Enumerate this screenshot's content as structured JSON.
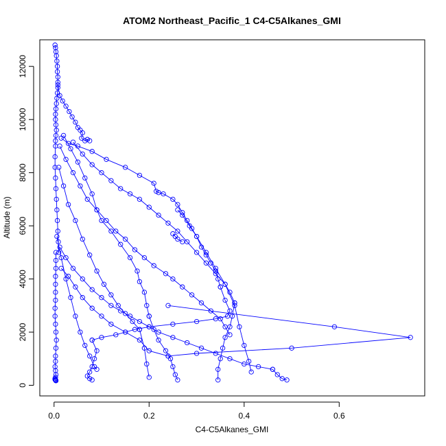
{
  "chart_data": {
    "type": "scatter",
    "title": "ATOM2 Northeast_Pacific_1 C4-C5Alkanes_GMI",
    "xlabel": "C4-C5Alkanes_GMI",
    "ylabel": "Altitude (m)",
    "xlim": [
      -0.03,
      0.78
    ],
    "ylim": [
      -400,
      13000
    ],
    "xticks": [
      0,
      0.2,
      0.4,
      0.6
    ],
    "xtick_labels": [
      "0.0",
      "0.2",
      "0.4",
      "0.6"
    ],
    "yticks": [
      0,
      2000,
      4000,
      6000,
      8000,
      10000,
      12000
    ],
    "ytick_labels": [
      "0",
      "2000",
      "4000",
      "6000",
      "8000",
      "10000",
      "12000"
    ],
    "grid": false,
    "legend": "none",
    "color": "#0000ff",
    "marker": "open-circle",
    "series": [
      {
        "x": [
          0.002,
          0.003,
          0.004,
          0.005,
          0.006,
          0.007,
          0.007,
          0.008,
          0.008,
          0.008,
          0.007,
          0.006,
          0.005,
          0.004,
          0.003,
          0.003,
          0.004,
          0.005,
          0.004,
          0.003,
          0.003,
          0.002,
          0.002,
          0.003,
          0.004,
          0.005,
          0.006,
          0.007,
          0.008,
          0.009,
          0.01
        ],
        "y": [
          12800,
          12700,
          12550,
          12400,
          12200,
          12000,
          11800,
          11600,
          11400,
          11200,
          11000,
          10800,
          10600,
          10400,
          10200,
          10000,
          9800,
          9600,
          9400,
          9200,
          9000,
          8600,
          8200,
          7800,
          7400,
          7000,
          6600,
          6200,
          5800,
          5400,
          5000
        ]
      },
      {
        "x": [
          0.004,
          0.004,
          0.004,
          0.003,
          0.003,
          0.003,
          0.003,
          0.002,
          0.002,
          0.003,
          0.004,
          0.005,
          0.004,
          0.003,
          0.003,
          0.002,
          0.003,
          0.004,
          0.003,
          0.002,
          0.002,
          0.003,
          0.003,
          0.004,
          0.004
        ],
        "y": [
          5000,
          4700,
          4400,
          4100,
          3800,
          3500,
          3200,
          2900,
          2600,
          2300,
          2000,
          1700,
          1400,
          1100,
          900,
          700,
          550,
          400,
          300,
          250,
          220,
          200,
          190,
          180,
          170
        ]
      },
      {
        "x": [
          0.008,
          0.012,
          0.018,
          0.025,
          0.032,
          0.038,
          0.045,
          0.05,
          0.055,
          0.06,
          0.058,
          0.065,
          0.07,
          0.075
        ],
        "y": [
          11300,
          10900,
          10700,
          10500,
          10300,
          10100,
          9900,
          9700,
          9600,
          9500,
          9300,
          9200,
          9250,
          9200
        ]
      },
      {
        "x": [
          0.015,
          0.03,
          0.05,
          0.08,
          0.11,
          0.15,
          0.18,
          0.21,
          0.215,
          0.22,
          0.23,
          0.25,
          0.26,
          0.27,
          0.28,
          0.29,
          0.3,
          0.31,
          0.32,
          0.33,
          0.34,
          0.345,
          0.35
        ],
        "y": [
          9300,
          9100,
          9000,
          8800,
          8500,
          8200,
          7900,
          7600,
          7300,
          7250,
          7200,
          7000,
          6800,
          6500,
          6200,
          5900,
          5600,
          5200,
          4900,
          4600,
          4300,
          4000,
          3700
        ]
      },
      {
        "x": [
          0.35,
          0.36,
          0.37,
          0.365,
          0.34,
          0.3,
          0.25,
          0.2,
          0.17,
          0.15,
          0.13,
          0.1,
          0.08
        ],
        "y": [
          3700,
          3200,
          2800,
          2600,
          2500,
          2400,
          2300,
          2200,
          2100,
          2000,
          1900,
          1800,
          1700
        ]
      },
      {
        "x": [
          0.08,
          0.09,
          0.085,
          0.08,
          0.075,
          0.07,
          0.075,
          0.08
        ],
        "y": [
          1700,
          1300,
          1000,
          700,
          500,
          350,
          250,
          200
        ]
      },
      {
        "x": [
          0.02,
          0.035,
          0.05,
          0.065,
          0.08,
          0.09,
          0.1,
          0.12,
          0.14,
          0.16,
          0.175,
          0.18,
          0.19,
          0.195,
          0.2
        ],
        "y": [
          9400,
          8900,
          8400,
          7800,
          7200,
          6600,
          6200,
          5800,
          5300,
          4800,
          4300,
          3900,
          3500,
          3000,
          2600
        ]
      },
      {
        "x": [
          0.2,
          0.21,
          0.22,
          0.235,
          0.245,
          0.25,
          0.255,
          0.26
        ],
        "y": [
          2600,
          2100,
          1700,
          1300,
          1000,
          700,
          400,
          200
        ]
      },
      {
        "x": [
          0.04,
          0.06,
          0.08,
          0.1,
          0.12,
          0.14,
          0.16,
          0.18,
          0.2,
          0.22,
          0.24,
          0.26,
          0.28,
          0.3,
          0.32,
          0.34,
          0.36,
          0.37,
          0.38
        ],
        "y": [
          9150,
          8700,
          8300,
          8000,
          7700,
          7400,
          7200,
          7000,
          6700,
          6400,
          6100,
          5800,
          5400,
          5000,
          4600,
          4200,
          3800,
          3500,
          3100
        ]
      },
      {
        "x": [
          0.38,
          0.375,
          0.37,
          0.36,
          0.355,
          0.35,
          0.345,
          0.345
        ],
        "y": [
          3100,
          2600,
          2200,
          1800,
          1400,
          1000,
          600,
          200
        ]
      },
      {
        "x": [
          0.012,
          0.025,
          0.04,
          0.055,
          0.07,
          0.09,
          0.11,
          0.13,
          0.15,
          0.17,
          0.19,
          0.21,
          0.235,
          0.25,
          0.27,
          0.29,
          0.31,
          0.33,
          0.35,
          0.36,
          0.37
        ],
        "y": [
          9000,
          8500,
          8000,
          7500,
          7000,
          6600,
          6200,
          5800,
          5500,
          5100,
          4800,
          4500,
          4200,
          4000,
          3700,
          3400,
          3100,
          2800,
          2500,
          2200,
          1900
        ]
      },
      {
        "x": [
          0.24,
          0.59,
          0.75,
          0.5,
          0.3,
          0.24
        ],
        "y": [
          3000,
          2200,
          1800,
          1400,
          1200,
          1100
        ]
      },
      {
        "x": [
          0.24,
          0.2,
          0.18,
          0.15,
          0.12,
          0.1,
          0.08,
          0.06,
          0.045,
          0.03,
          0.015
        ],
        "y": [
          1100,
          1300,
          1700,
          2000,
          2300,
          2600,
          2900,
          3300,
          3700,
          4100,
          4400
        ]
      },
      {
        "x": [
          0.01,
          0.02,
          0.03,
          0.045,
          0.06,
          0.075,
          0.09,
          0.105,
          0.12,
          0.135,
          0.15,
          0.165,
          0.18
        ],
        "y": [
          8200,
          7500,
          6800,
          6200,
          5500,
          4900,
          4300,
          3800,
          3400,
          3000,
          2700,
          2400,
          2100
        ]
      },
      {
        "x": [
          0.18,
          0.19,
          0.195,
          0.2
        ],
        "y": [
          2100,
          1400,
          800,
          300
        ]
      },
      {
        "x": [
          0.012,
          0.025,
          0.04,
          0.06,
          0.08,
          0.1,
          0.12,
          0.14,
          0.16,
          0.18,
          0.2,
          0.22,
          0.25,
          0.28,
          0.31,
          0.34,
          0.37,
          0.4,
          0.43,
          0.46
        ],
        "y": [
          5200,
          4800,
          4400,
          4000,
          3600,
          3300,
          3000,
          2800,
          2600,
          2400,
          2200,
          2000,
          1800,
          1600,
          1400,
          1200,
          1000,
          800,
          700,
          600
        ]
      },
      {
        "x": [
          0.46,
          0.47,
          0.48,
          0.49
        ],
        "y": [
          600,
          400,
          250,
          200
        ]
      },
      {
        "x": [
          0.006,
          0.015,
          0.025,
          0.035,
          0.045,
          0.055,
          0.065,
          0.075,
          0.085,
          0.09
        ],
        "y": [
          5600,
          4800,
          4000,
          3300,
          2600,
          2000,
          1500,
          1100,
          700,
          600
        ]
      },
      {
        "x": [
          0.26,
          0.27,
          0.285,
          0.3,
          0.32,
          0.34,
          0.36,
          0.38,
          0.39,
          0.4,
          0.41,
          0.415
        ],
        "y": [
          6600,
          6400,
          6000,
          5600,
          5000,
          4400,
          3800,
          3000,
          2200,
          1500,
          900,
          500
        ]
      },
      {
        "x": [
          0.25,
          0.255,
          0.26,
          0.27
        ],
        "y": [
          5700,
          5600,
          5500,
          5400
        ]
      }
    ]
  }
}
